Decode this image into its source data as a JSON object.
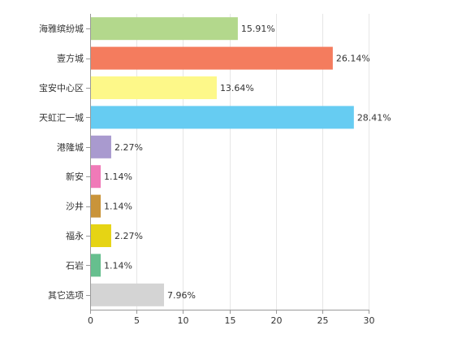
{
  "chart_data": {
    "type": "bar",
    "orientation": "horizontal",
    "categories": [
      "海雅缤纷城",
      "壹方城",
      "宝安中心区",
      "天虹汇一城",
      "港隆城",
      "新安",
      "沙井",
      "福永",
      "石岩",
      "其它选项"
    ],
    "values": [
      15.91,
      26.14,
      13.64,
      28.41,
      2.27,
      1.14,
      1.14,
      2.27,
      1.14,
      7.96
    ],
    "value_labels": [
      "15.91%",
      "26.14%",
      "13.64%",
      "28.41%",
      "2.27%",
      "1.14%",
      "1.14%",
      "2.27%",
      "1.14%",
      "7.96%"
    ],
    "colors": [
      "#b3d88c",
      "#f47c5e",
      "#fdf889",
      "#66ccf2",
      "#a99acf",
      "#f07ab8",
      "#c9943a",
      "#e6d414",
      "#66bf8e",
      "#d4d4d4"
    ],
    "xlim": [
      0,
      30
    ],
    "xticks": [
      "0",
      "5",
      "10",
      "15",
      "20",
      "25",
      "30"
    ],
    "grid": "vertical",
    "title": "",
    "xlabel": "",
    "ylabel": ""
  }
}
